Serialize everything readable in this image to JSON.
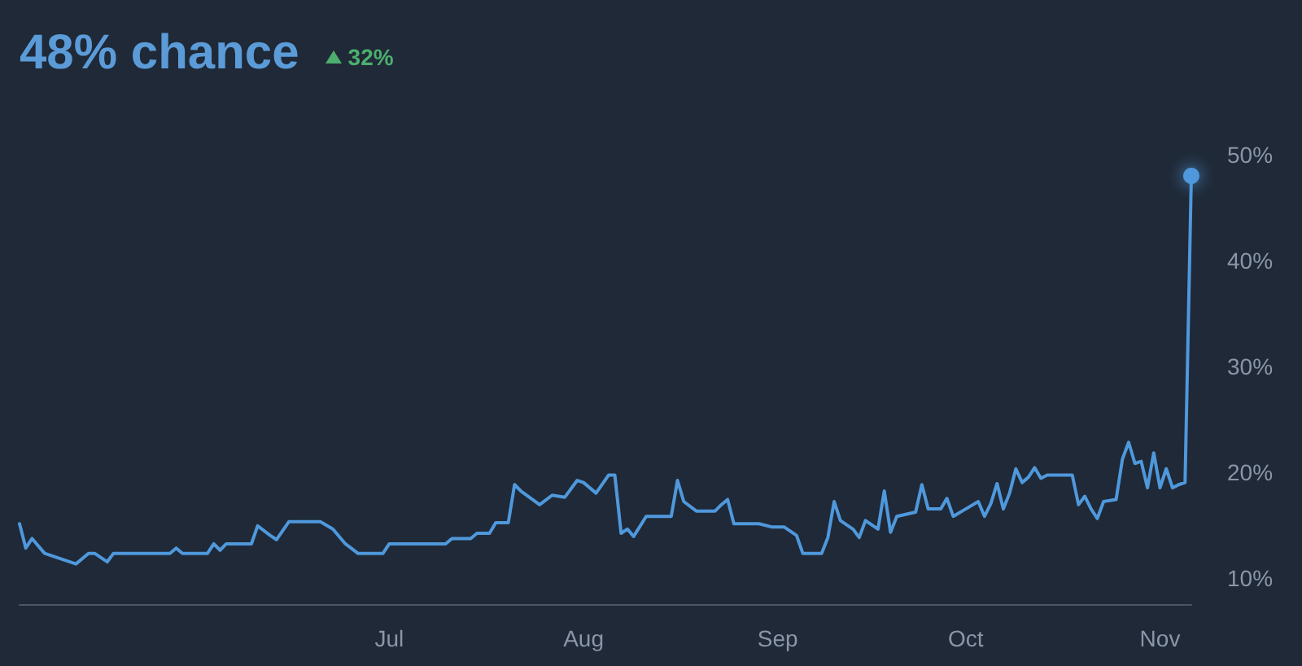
{
  "chart_data": {
    "type": "line",
    "title": "48% chance",
    "subtitle": "32%",
    "x": [
      "--05-03",
      "--05-04",
      "--05-05",
      "--05-07",
      "--05-12",
      "--05-14",
      "--05-15",
      "--05-17",
      "--05-18",
      "--05-27",
      "--05-28",
      "--05-29",
      "--06-02",
      "--06-03",
      "--06-04",
      "--06-05",
      "--06-09",
      "--06-10",
      "--06-12",
      "--06-13",
      "--06-15",
      "--06-20",
      "--06-22",
      "--06-24",
      "--06-26",
      "--06-30",
      "--07-01",
      "--07-10",
      "--07-11",
      "--07-14",
      "--07-15",
      "--07-17",
      "--07-18",
      "--07-20",
      "--07-21",
      "--07-22",
      "--07-25",
      "--07-27",
      "--07-29",
      "--07-31",
      "--08-01",
      "--08-03",
      "--08-05",
      "--08-06",
      "--08-07",
      "--08-08",
      "--08-09",
      "--08-11",
      "--08-15",
      "--08-16",
      "--08-17",
      "--08-19",
      "--08-22",
      "--08-23",
      "--08-24",
      "--08-25",
      "--08-29",
      "--08-31",
      "--09-02",
      "--09-04",
      "--09-05",
      "--09-08",
      "--09-09",
      "--09-10",
      "--09-11",
      "--09-13",
      "--09-14",
      "--09-15",
      "--09-17",
      "--09-18",
      "--09-19",
      "--09-20",
      "--09-23",
      "--09-24",
      "--09-25",
      "--09-27",
      "--09-28",
      "--09-29",
      "--10-01",
      "--10-03",
      "--10-04",
      "--10-05",
      "--10-06",
      "--10-07",
      "--10-08",
      "--10-09",
      "--10-10",
      "--10-11",
      "--10-12",
      "--10-13",
      "--10-14",
      "--10-18",
      "--10-19",
      "--10-20",
      "--10-21",
      "--10-22",
      "--10-23",
      "--10-25",
      "--10-26",
      "--10-27",
      "--10-28",
      "--10-29",
      "--10-30",
      "--10-31",
      "--11-01",
      "--11-02",
      "--11-03",
      "--11-04",
      "--11-05",
      "--11-06"
    ],
    "series": [
      {
        "color": "#4f98dc",
        "values": [
          15.1,
          12.8,
          13.7,
          12.3,
          11.3,
          12.3,
          12.3,
          11.5,
          12.3,
          12.3,
          12.8,
          12.3,
          12.3,
          13.2,
          12.6,
          13.2,
          13.2,
          14.9,
          14.0,
          13.6,
          15.3,
          15.3,
          14.6,
          13.2,
          12.3,
          12.3,
          13.2,
          13.2,
          13.7,
          13.7,
          14.2,
          14.2,
          15.2,
          15.2,
          18.8,
          18.2,
          16.9,
          17.8,
          17.6,
          19.2,
          19.0,
          18.0,
          19.7,
          19.7,
          14.2,
          14.6,
          13.9,
          15.8,
          15.8,
          19.2,
          17.2,
          16.3,
          16.3,
          16.9,
          17.4,
          15.1,
          15.1,
          14.8,
          14.8,
          14.0,
          12.3,
          12.3,
          13.8,
          17.2,
          15.4,
          14.6,
          13.8,
          15.4,
          14.6,
          18.2,
          14.3,
          15.8,
          16.2,
          18.8,
          16.5,
          16.5,
          17.5,
          15.8,
          16.5,
          17.2,
          15.8,
          17.0,
          18.9,
          16.5,
          18.0,
          20.3,
          19.0,
          19.5,
          20.4,
          19.4,
          19.7,
          19.7,
          16.9,
          17.7,
          16.5,
          15.6,
          17.2,
          17.4,
          21.2,
          22.8,
          20.8,
          21.0,
          18.5,
          21.8,
          18.5,
          20.3,
          18.5,
          18.8,
          19.0,
          48
        ]
      }
    ],
    "xlim": [
      "--05-03",
      "--11-06"
    ],
    "xticks": [
      {
        "value": "--07-01",
        "label": "Jul"
      },
      {
        "value": "--08-01",
        "label": "Aug"
      },
      {
        "value": "--09-01",
        "label": "Sep"
      },
      {
        "value": "--10-01",
        "label": "Oct"
      },
      {
        "value": "--11-01",
        "label": "Nov"
      }
    ],
    "ylim": [
      7.5,
      50
    ],
    "yticks": [
      {
        "value": 10,
        "label": "10%"
      },
      {
        "value": 20,
        "label": "20%"
      },
      {
        "value": 30,
        "label": "30%"
      },
      {
        "value": 40,
        "label": "40%"
      },
      {
        "value": 50,
        "label": "50%"
      }
    ],
    "grid": false,
    "legend": false
  }
}
